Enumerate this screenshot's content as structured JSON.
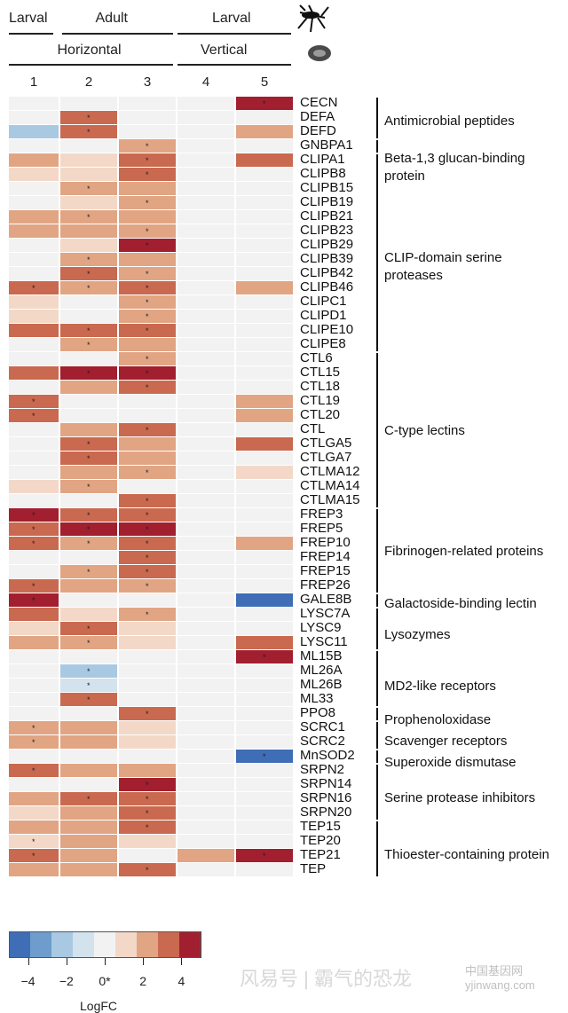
{
  "header": {
    "row1": [
      {
        "label": "Larval",
        "x": 10,
        "w": 50
      },
      {
        "label": "Adult",
        "x": 70,
        "w": 125
      },
      {
        "label": "Larval",
        "x": 200,
        "w": 128
      }
    ],
    "row2": [
      {
        "label": "Horizontal",
        "x": 10,
        "w": 185
      },
      {
        "label": "Vertical",
        "x": 200,
        "w": 128
      }
    ],
    "columns": [
      "1",
      "2",
      "3",
      "4",
      "5"
    ],
    "icons": [
      "mosquito-icon",
      "larval-habitat-icon"
    ]
  },
  "chart_data": {
    "type": "heatmap",
    "columns": [
      "1",
      "2",
      "3",
      "4",
      "5"
    ],
    "rows": [
      {
        "gene": "CECN",
        "v": [
          0,
          0,
          0,
          0,
          4
        ],
        "s": [
          0,
          0,
          0,
          0,
          1
        ]
      },
      {
        "gene": "DEFA",
        "v": [
          0,
          3,
          0,
          0,
          0
        ],
        "s": [
          0,
          1,
          0,
          0,
          0
        ]
      },
      {
        "gene": "DEFD",
        "v": [
          -2,
          3,
          0,
          0,
          2
        ],
        "s": [
          0,
          1,
          0,
          0,
          0
        ]
      },
      {
        "gene": "GNBPA1",
        "v": [
          0,
          0,
          2,
          0,
          0
        ],
        "s": [
          0,
          0,
          1,
          0,
          0
        ]
      },
      {
        "gene": "CLIPA1",
        "v": [
          2,
          1,
          3,
          0,
          3
        ],
        "s": [
          0,
          0,
          1,
          0,
          0
        ]
      },
      {
        "gene": "CLIPB8",
        "v": [
          1,
          1,
          3,
          0,
          0
        ],
        "s": [
          0,
          0,
          1,
          0,
          0
        ]
      },
      {
        "gene": "CLIPB15",
        "v": [
          0,
          2,
          2,
          0,
          0
        ],
        "s": [
          0,
          1,
          0,
          0,
          0
        ]
      },
      {
        "gene": "CLIPB19",
        "v": [
          0,
          1,
          2,
          0,
          0
        ],
        "s": [
          0,
          0,
          1,
          0,
          0
        ]
      },
      {
        "gene": "CLIPB21",
        "v": [
          2,
          2,
          2,
          0,
          0
        ],
        "s": [
          0,
          1,
          0,
          0,
          0
        ]
      },
      {
        "gene": "CLIPB23",
        "v": [
          2,
          2,
          2,
          0,
          0
        ],
        "s": [
          0,
          0,
          1,
          0,
          0
        ]
      },
      {
        "gene": "CLIPB29",
        "v": [
          0,
          1,
          4,
          0,
          0
        ],
        "s": [
          0,
          0,
          1,
          0,
          0
        ]
      },
      {
        "gene": "CLIPB39",
        "v": [
          0,
          2,
          2,
          0,
          0
        ],
        "s": [
          0,
          1,
          0,
          0,
          0
        ]
      },
      {
        "gene": "CLIPB42",
        "v": [
          0,
          3,
          2,
          0,
          0
        ],
        "s": [
          0,
          1,
          1,
          0,
          0
        ]
      },
      {
        "gene": "CLIPB46",
        "v": [
          3,
          2,
          3,
          0,
          2
        ],
        "s": [
          1,
          1,
          1,
          0,
          0
        ]
      },
      {
        "gene": "CLIPC1",
        "v": [
          1,
          0,
          2,
          0,
          0
        ],
        "s": [
          0,
          0,
          1,
          0,
          0
        ]
      },
      {
        "gene": "CLIPD1",
        "v": [
          1,
          0,
          2,
          0,
          0
        ],
        "s": [
          0,
          0,
          1,
          0,
          0
        ]
      },
      {
        "gene": "CLIPE10",
        "v": [
          3,
          3,
          3,
          0,
          0
        ],
        "s": [
          0,
          1,
          1,
          0,
          0
        ]
      },
      {
        "gene": "CLIPE8",
        "v": [
          0,
          2,
          2,
          0,
          0
        ],
        "s": [
          0,
          1,
          0,
          0,
          0
        ]
      },
      {
        "gene": "CTL6",
        "v": [
          0,
          0,
          2,
          0,
          0
        ],
        "s": [
          0,
          0,
          1,
          0,
          0
        ]
      },
      {
        "gene": "CTL15",
        "v": [
          3,
          4,
          4,
          0,
          0
        ],
        "s": [
          0,
          1,
          1,
          0,
          0
        ]
      },
      {
        "gene": "CTL18",
        "v": [
          0,
          2,
          3,
          0,
          0
        ],
        "s": [
          0,
          0,
          1,
          0,
          0
        ]
      },
      {
        "gene": "CTL19",
        "v": [
          3,
          0,
          0,
          0,
          2
        ],
        "s": [
          1,
          0,
          0,
          0,
          0
        ]
      },
      {
        "gene": "CTL20",
        "v": [
          3,
          0,
          0,
          0,
          2
        ],
        "s": [
          1,
          0,
          0,
          0,
          0
        ]
      },
      {
        "gene": "CTL",
        "v": [
          0,
          2,
          3,
          0,
          0
        ],
        "s": [
          0,
          0,
          1,
          0,
          0
        ]
      },
      {
        "gene": "CTLGA5",
        "v": [
          0,
          3,
          2,
          0,
          3
        ],
        "s": [
          0,
          1,
          0,
          0,
          0
        ]
      },
      {
        "gene": "CTLGA7",
        "v": [
          0,
          3,
          2,
          0,
          0
        ],
        "s": [
          0,
          1,
          0,
          0,
          0
        ]
      },
      {
        "gene": "CTLMA12",
        "v": [
          0,
          2,
          2,
          0,
          1
        ],
        "s": [
          0,
          0,
          1,
          0,
          0
        ]
      },
      {
        "gene": "CTLMA14",
        "v": [
          1,
          2,
          0,
          0,
          0
        ],
        "s": [
          0,
          1,
          0,
          0,
          0
        ]
      },
      {
        "gene": "CTLMA15",
        "v": [
          0,
          0,
          3,
          0,
          0
        ],
        "s": [
          0,
          0,
          1,
          0,
          0
        ]
      },
      {
        "gene": "FREP3",
        "v": [
          4,
          3,
          3,
          0,
          0
        ],
        "s": [
          1,
          1,
          1,
          0,
          0
        ]
      },
      {
        "gene": "FREP5",
        "v": [
          3,
          4,
          4,
          0,
          0
        ],
        "s": [
          1,
          1,
          1,
          0,
          0
        ]
      },
      {
        "gene": "FREP10",
        "v": [
          3,
          2,
          3,
          0,
          2
        ],
        "s": [
          1,
          1,
          1,
          0,
          0
        ]
      },
      {
        "gene": "FREP14",
        "v": [
          0,
          0,
          3,
          0,
          0
        ],
        "s": [
          0,
          0,
          1,
          0,
          0
        ]
      },
      {
        "gene": "FREP15",
        "v": [
          0,
          2,
          3,
          0,
          0
        ],
        "s": [
          0,
          1,
          1,
          0,
          0
        ]
      },
      {
        "gene": "FREP26",
        "v": [
          3,
          2,
          2,
          0,
          0
        ],
        "s": [
          1,
          0,
          1,
          0,
          0
        ]
      },
      {
        "gene": "GALE8B",
        "v": [
          4,
          0,
          0,
          0,
          -4
        ],
        "s": [
          1,
          0,
          0,
          0,
          0
        ]
      },
      {
        "gene": "LYSC7A",
        "v": [
          3,
          1,
          2,
          0,
          0
        ],
        "s": [
          0,
          0,
          1,
          0,
          0
        ]
      },
      {
        "gene": "LYSC9",
        "v": [
          1,
          3,
          1,
          0,
          0
        ],
        "s": [
          0,
          1,
          0,
          0,
          0
        ]
      },
      {
        "gene": "LYSC11",
        "v": [
          2,
          2,
          1,
          0,
          3
        ],
        "s": [
          0,
          1,
          0,
          0,
          0
        ]
      },
      {
        "gene": "ML15B",
        "v": [
          0,
          0,
          0,
          0,
          4
        ],
        "s": [
          0,
          0,
          0,
          0,
          1
        ]
      },
      {
        "gene": "ML26A",
        "v": [
          0,
          -2,
          0,
          0,
          0
        ],
        "s": [
          0,
          1,
          0,
          0,
          0
        ]
      },
      {
        "gene": "ML26B",
        "v": [
          0,
          -1,
          0,
          0,
          0
        ],
        "s": [
          0,
          1,
          0,
          0,
          0
        ]
      },
      {
        "gene": "ML33",
        "v": [
          0,
          3,
          0,
          0,
          0
        ],
        "s": [
          0,
          1,
          0,
          0,
          0
        ]
      },
      {
        "gene": "PPO8",
        "v": [
          0,
          0,
          3,
          0,
          0
        ],
        "s": [
          0,
          0,
          1,
          0,
          0
        ]
      },
      {
        "gene": "SCRC1",
        "v": [
          2,
          2,
          1,
          0,
          0
        ],
        "s": [
          1,
          0,
          0,
          0,
          0
        ]
      },
      {
        "gene": "SCRC2",
        "v": [
          2,
          2,
          1,
          0,
          0
        ],
        "s": [
          1,
          0,
          0,
          0,
          0
        ]
      },
      {
        "gene": "MnSOD2",
        "v": [
          0,
          0,
          0,
          0,
          -4
        ],
        "s": [
          0,
          0,
          0,
          0,
          1
        ]
      },
      {
        "gene": "SRPN2",
        "v": [
          3,
          2,
          2,
          0,
          0
        ],
        "s": [
          1,
          0,
          0,
          0,
          0
        ]
      },
      {
        "gene": "SRPN14",
        "v": [
          0,
          0,
          4,
          0,
          0
        ],
        "s": [
          0,
          0,
          1,
          0,
          0
        ]
      },
      {
        "gene": "SRPN16",
        "v": [
          2,
          3,
          3,
          0,
          0
        ],
        "s": [
          0,
          1,
          1,
          0,
          0
        ]
      },
      {
        "gene": "SRPN20",
        "v": [
          1,
          2,
          3,
          0,
          0
        ],
        "s": [
          0,
          0,
          1,
          0,
          0
        ]
      },
      {
        "gene": "TEP15",
        "v": [
          2,
          2,
          3,
          0,
          0
        ],
        "s": [
          0,
          0,
          1,
          0,
          0
        ]
      },
      {
        "gene": "TEP20",
        "v": [
          1,
          2,
          1,
          0,
          0
        ],
        "s": [
          1,
          0,
          0,
          0,
          0
        ]
      },
      {
        "gene": "TEP21",
        "v": [
          3,
          2,
          0,
          2,
          4
        ],
        "s": [
          1,
          0,
          0,
          0,
          1
        ]
      },
      {
        "gene": "TEP",
        "v": [
          2,
          2,
          3,
          0,
          0
        ],
        "s": [
          0,
          0,
          1,
          0,
          0
        ]
      }
    ],
    "legend": {
      "ticks": [
        "−4",
        "−2",
        "0*",
        "2",
        "4"
      ],
      "tick_values": [
        -4,
        -2,
        0,
        2,
        4
      ],
      "range": [
        -5,
        5
      ],
      "title": "LogFC"
    }
  },
  "groups": [
    {
      "label": "Antimicrobial peptides",
      "start": 0,
      "end": 2,
      "labelRow": 1
    },
    {
      "label": "Beta-1,3 glucan-binding\nprotein",
      "start": 3,
      "end": 3,
      "labelRow": 3.6
    },
    {
      "label": "CLIP-domain serine\nproteases",
      "start": 4,
      "end": 17,
      "labelRow": 10.6
    },
    {
      "label": "C-type lectins",
      "start": 18,
      "end": 28,
      "labelRow": 22.8
    },
    {
      "label": "Fibrinogen-related proteins",
      "start": 29,
      "end": 34,
      "labelRow": 31.3
    },
    {
      "label": "Galactoside-binding lectin",
      "start": 35,
      "end": 35,
      "labelRow": 35
    },
    {
      "label": "Lysozymes",
      "start": 36,
      "end": 38,
      "labelRow": 37.2
    },
    {
      "label": "MD2-like receptors",
      "start": 39,
      "end": 42,
      "labelRow": 40.8
    },
    {
      "label": "Prophenoloxidase",
      "start": 43,
      "end": 43,
      "labelRow": 43.2
    },
    {
      "label": "Scavenger receptors",
      "start": 44,
      "end": 45,
      "labelRow": 44.7
    },
    {
      "label": "Superoxide dismutase",
      "start": 46,
      "end": 46,
      "labelRow": 46.2
    },
    {
      "label": "Serine protease inhibitors",
      "start": 47,
      "end": 50,
      "labelRow": 48.7
    },
    {
      "label": "Thioester-containing protein",
      "start": 51,
      "end": 54,
      "labelRow": 52.7
    }
  ],
  "palette": {
    "neg": [
      "#f1f1f1",
      "#d2e3ee",
      "#a9c9e2",
      "#6e9ccd",
      "#3f6db6"
    ],
    "pos": [
      "#f2f2f2",
      "#f3d8c8",
      "#e1a584",
      "#c9694f",
      "#a11f2f"
    ]
  },
  "watermark": {
    "text": "风易号 | 霸气的恐龙",
    "logo": "中国基因网 yjinwang.com"
  }
}
